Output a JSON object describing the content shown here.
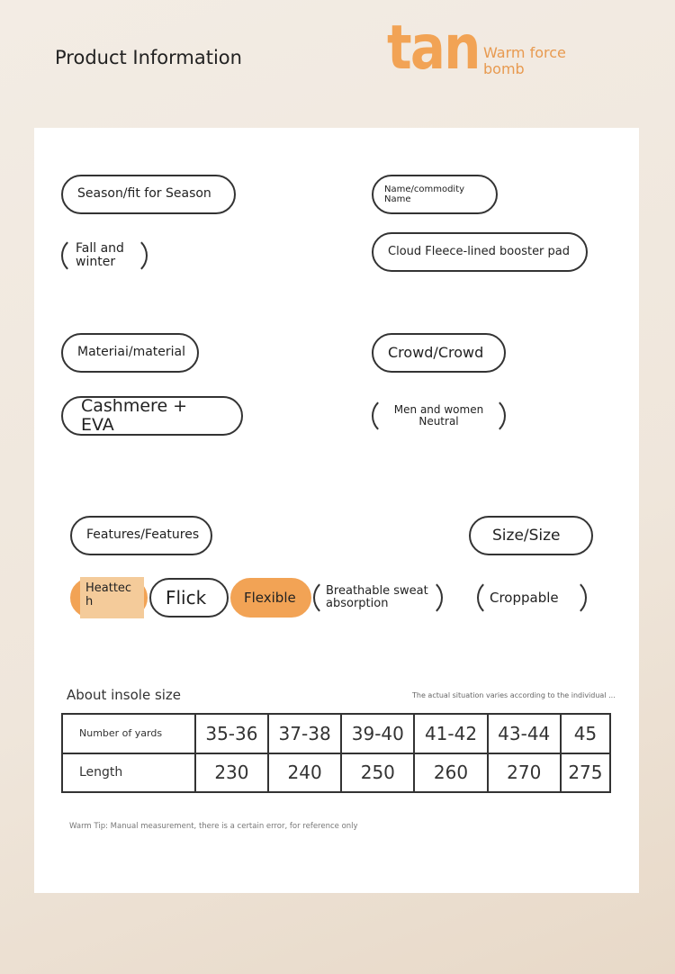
{
  "header": {
    "title": "Product Information",
    "logo": "tan",
    "slogan_line1": "Warm force",
    "slogan_line2": "bomb"
  },
  "attributes": {
    "season_label": "Season/fit for Season",
    "season_value": "Fall and winter",
    "name_label": "Name/commodity Name",
    "name_value": "Cloud Fleece-lined booster pad",
    "material_label": "Materiai/material",
    "material_value": "Cashmere + EVA",
    "crowd_label": "Crowd/Crowd",
    "crowd_value": "Men and women Neutral",
    "features_label": "Features/Features",
    "features": [
      "Heattec h",
      "Flick",
      "Flexible",
      "Breathable sweat absorption"
    ],
    "size_label": "Size/Size",
    "size_value": "Croppable"
  },
  "size_table": {
    "title": "About insole size",
    "note": "The actual situation varies according to the individual ...",
    "row_headers": [
      "Number of yards",
      "Length"
    ],
    "sizes": [
      "35-36",
      "37-38",
      "39-40",
      "41-42",
      "43-44",
      "45"
    ],
    "lengths": [
      "230",
      "240",
      "250",
      "260",
      "270",
      "275"
    ]
  },
  "tip": "Warm Tip: Manual measurement, there is a certain error, for reference only",
  "colors": {
    "accent": "#f2a355",
    "light_accent": "#f4cb9a"
  }
}
